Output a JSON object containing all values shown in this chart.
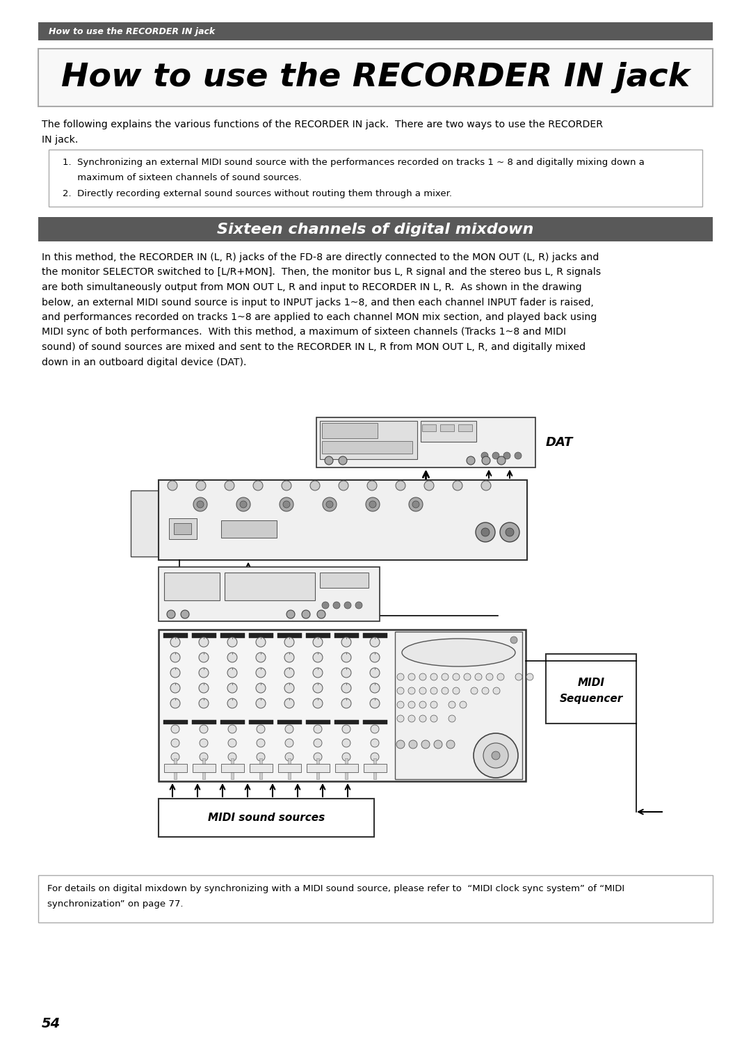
{
  "page_bg": "#ffffff",
  "header_bg": "#595959",
  "header_text": "How to use the RECORDER IN jack",
  "header_text_color": "#ffffff",
  "title_text": "How to use the RECORDER IN jack",
  "section_bg": "#595959",
  "section_text": "Sixteen channels of digital mixdown",
  "section_text_color": "#ffffff",
  "intro_line1": "The following explains the various functions of the RECORDER IN jack.  There are two ways to use the RECORDER",
  "intro_line2": "IN jack.",
  "list_item1a": "1.  Synchronizing an external MIDI sound source with the performances recorded on tracks 1 ~ 8 and digitally mixing down a",
  "list_item1b": "     maximum of sixteen channels of sound sources.",
  "list_item2": "2.  Directly recording external sound sources without routing them through a mixer.",
  "body_lines": [
    "In this method, the RECORDER IN (L, R) jacks of the FD-8 are directly connected to the MON OUT (L, R) jacks and",
    "the monitor SELECTOR switched to [L/R+MON].  Then, the monitor bus L, R signal and the stereo bus L, R signals",
    "are both simultaneously output from MON OUT L, R and input to RECORDER IN L, R.  As shown in the drawing",
    "below, an external MIDI sound source is input to INPUT jacks 1~8, and then each channel INPUT fader is raised,",
    "and performances recorded on tracks 1~8 are applied to each channel MON mix section, and played back using",
    "MIDI sync of both performances.  With this method, a maximum of sixteen channels (Tracks 1~8 and MIDI",
    "sound) of sound sources are mixed and sent to the RECORDER IN L, R from MON OUT L, R, and digitally mixed",
    "down in an outboard digital device (DAT)."
  ],
  "footer_line1": "For details on digital mixdown by synchronizing with a MIDI sound source, please refer to  “MIDI clock sync system” of “MIDI",
  "footer_line2": "synchronization” on page 77.",
  "page_number": "54",
  "dat_label": "DAT",
  "midi_seq_label1": "MIDI",
  "midi_seq_label2": "Sequencer",
  "midi_sources_label": "MIDI sound sources"
}
